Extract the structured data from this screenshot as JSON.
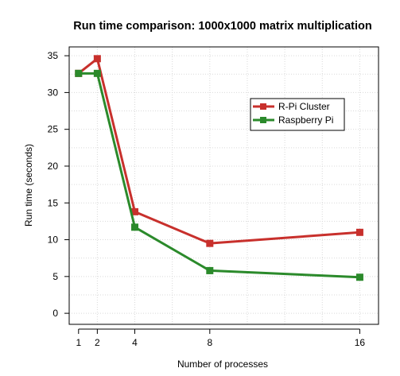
{
  "chart_data": {
    "type": "line",
    "title": "Run time comparison: 1000x1000 matrix multiplication",
    "xlabel": "Number of processes",
    "ylabel": "Run time (seconds)",
    "x": [
      1,
      2,
      4,
      8,
      16
    ],
    "xticks": [
      "1",
      "2",
      "4",
      "8",
      "16"
    ],
    "xlim": [
      0.5,
      17.0
    ],
    "yticks": [
      "0",
      "5",
      "10",
      "15",
      "20",
      "25",
      "30",
      "35"
    ],
    "ylim": [
      -1.5,
      36.2
    ],
    "grid": true,
    "legend_position": "top-right",
    "series": [
      {
        "name": "R-Pi Cluster",
        "color": "#c8302c",
        "values": [
          32.6,
          34.6,
          13.8,
          9.5,
          11.0
        ]
      },
      {
        "name": "Raspberry Pi",
        "color": "#2b8a2b",
        "values": [
          32.6,
          32.6,
          11.7,
          5.8,
          4.9
        ]
      }
    ]
  }
}
